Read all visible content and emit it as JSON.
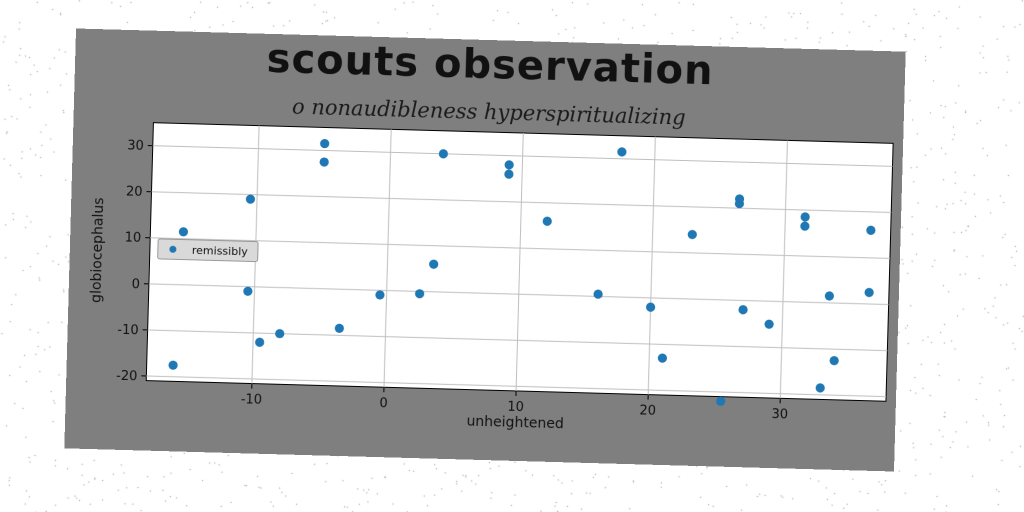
{
  "chart_data": {
    "type": "scatter",
    "title": "scouts observation",
    "subtitle": "o nonaudibleness hyperspiritualizing",
    "xlabel": "unheightened",
    "ylabel": "globiocephalus",
    "xlim": [
      -18,
      38
    ],
    "ylim": [
      -21,
      35
    ],
    "xticks": [
      -10,
      0,
      10,
      20,
      30
    ],
    "yticks": [
      -20,
      -10,
      0,
      10,
      20,
      30
    ],
    "grid": true,
    "legend_position": "center-left",
    "series": [
      {
        "name": "remissibly",
        "color": "#1f77b4",
        "points": [
          {
            "x": -16,
            "y": -17.5
          },
          {
            "x": -15.5,
            "y": 11.5
          },
          {
            "x": -10.5,
            "y": 19
          },
          {
            "x": -10.5,
            "y": -1
          },
          {
            "x": -9.5,
            "y": -12
          },
          {
            "x": -8,
            "y": -10
          },
          {
            "x": -5,
            "y": 31.5
          },
          {
            "x": -5,
            "y": 27.5
          },
          {
            "x": -3.5,
            "y": -8.5
          },
          {
            "x": -0.5,
            "y": -1
          },
          {
            "x": 2.5,
            "y": -0.5
          },
          {
            "x": 3.5,
            "y": 6
          },
          {
            "x": 4,
            "y": 30
          },
          {
            "x": 9,
            "y": 28
          },
          {
            "x": 9,
            "y": 26
          },
          {
            "x": 12,
            "y": 16
          },
          {
            "x": 16,
            "y": 0.5
          },
          {
            "x": 17.5,
            "y": 31.5
          },
          {
            "x": 20,
            "y": -2
          },
          {
            "x": 21,
            "y": -13
          },
          {
            "x": 23,
            "y": 14
          },
          {
            "x": 25.5,
            "y": -22
          },
          {
            "x": 26.5,
            "y": 22
          },
          {
            "x": 26.5,
            "y": 21
          },
          {
            "x": 27,
            "y": -2
          },
          {
            "x": 29,
            "y": -5
          },
          {
            "x": 31.5,
            "y": 18.5
          },
          {
            "x": 31.5,
            "y": 16.5
          },
          {
            "x": 33,
            "y": -18.5
          },
          {
            "x": 33.5,
            "y": 1.5
          },
          {
            "x": 34,
            "y": -12.5
          },
          {
            "x": 36.5,
            "y": 16
          },
          {
            "x": 36.5,
            "y": 2.5
          }
        ]
      }
    ]
  }
}
